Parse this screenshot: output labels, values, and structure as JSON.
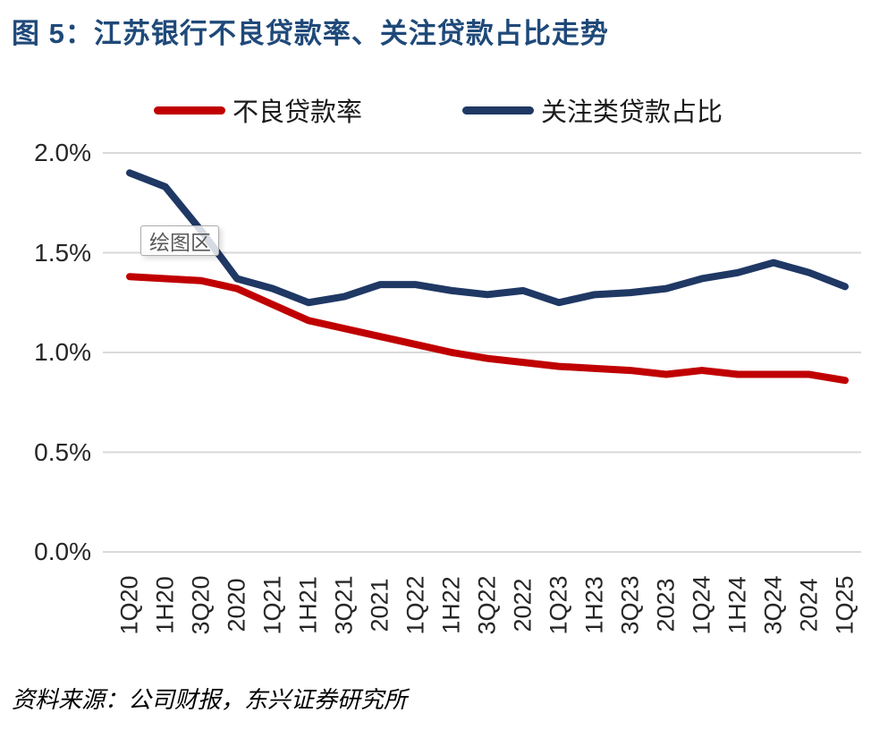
{
  "figure": {
    "title": "图 5：江苏银行不良贷款率、关注贷款占比走势"
  },
  "legend": {
    "items": [
      {
        "label": "不良贷款率",
        "color": "#C00000"
      },
      {
        "label": "关注类贷款占比",
        "color": "#1F3864"
      }
    ]
  },
  "tooltip": {
    "text": "绘图区"
  },
  "footer": {
    "source": "资料来源：公司财报，东兴证券研究所"
  },
  "colors": {
    "title": "#1F4979",
    "gridline": "#D9D9D9",
    "axis_text": "#262626"
  },
  "chart_data": {
    "type": "line",
    "title": "图 5：江苏银行不良贷款率、关注贷款占比走势",
    "categories": [
      "1Q20",
      "1H20",
      "3Q20",
      "2020",
      "1Q21",
      "1H21",
      "3Q21",
      "2021",
      "1Q22",
      "1H22",
      "3Q22",
      "2022",
      "1Q23",
      "1H23",
      "3Q23",
      "2023",
      "1Q24",
      "1H24",
      "3Q24",
      "2024",
      "1Q25"
    ],
    "series": [
      {
        "name": "不良贷款率",
        "color": "#C00000",
        "data_name": "npl-ratio-line",
        "values": [
          1.38,
          1.37,
          1.36,
          1.32,
          1.24,
          1.16,
          1.12,
          1.08,
          1.04,
          1.0,
          0.97,
          0.95,
          0.93,
          0.92,
          0.91,
          0.89,
          0.91,
          0.89,
          0.89,
          0.89,
          0.86
        ]
      },
      {
        "name": "关注类贷款占比",
        "color": "#1F3864",
        "data_name": "special-mention-line",
        "values": [
          1.9,
          1.83,
          1.61,
          1.37,
          1.32,
          1.25,
          1.28,
          1.34,
          1.34,
          1.31,
          1.29,
          1.31,
          1.25,
          1.29,
          1.3,
          1.32,
          1.37,
          1.4,
          1.45,
          1.4,
          1.33
        ]
      }
    ],
    "xlabel": "",
    "ylabel": "",
    "unit": "%",
    "ytick_labels": [
      "2.0%",
      "1.5%",
      "1.0%",
      "0.5%",
      "0.0%"
    ],
    "ytick_values": [
      2.0,
      1.5,
      1.0,
      0.5,
      0.0
    ],
    "ylim": [
      0,
      2.0
    ],
    "grid": "horizontal",
    "legend_position": "top"
  }
}
